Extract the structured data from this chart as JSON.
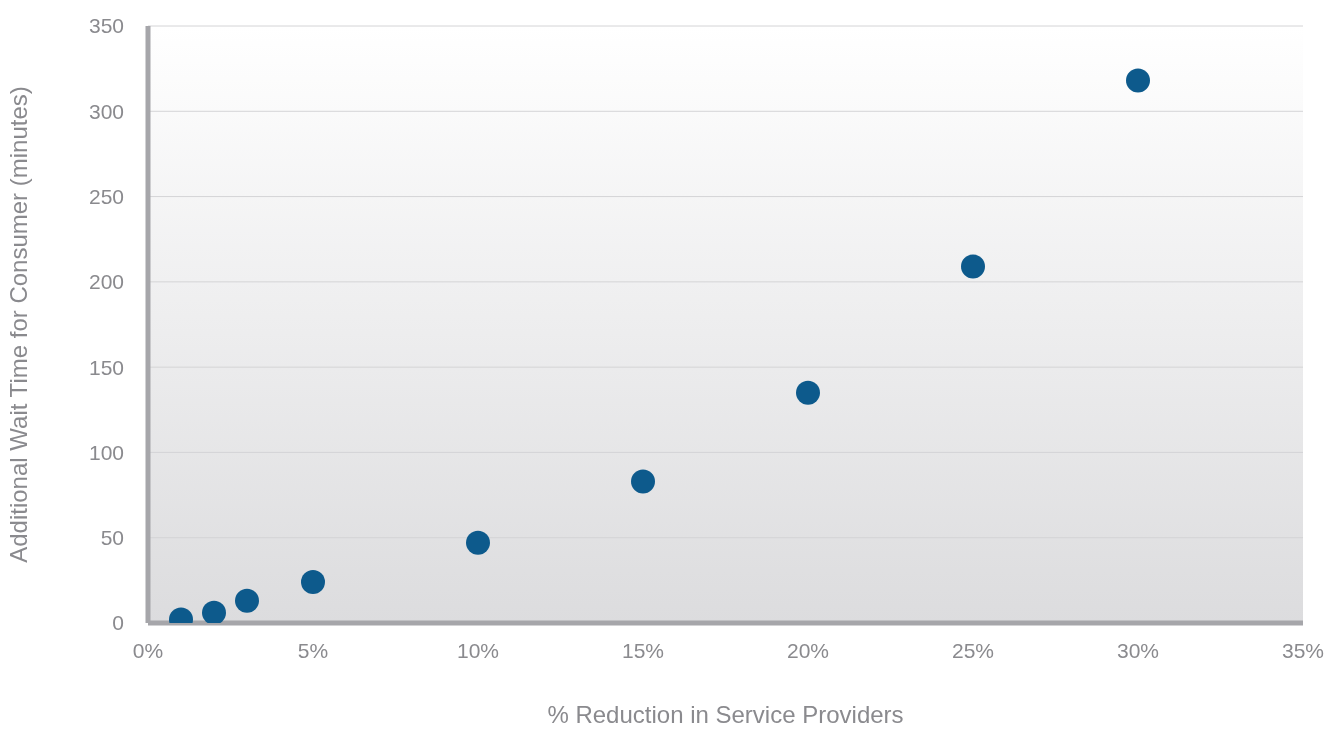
{
  "chart_data": {
    "type": "scatter",
    "xlabel": "% Reduction in Service Providers",
    "ylabel": "Additional Wait Time for Consumer (minutes)",
    "x": [
      1,
      2,
      3,
      5,
      10,
      15,
      20,
      25,
      30
    ],
    "values": [
      2,
      6,
      13,
      24,
      47,
      83,
      135,
      209,
      318
    ],
    "color": "#0d5a8c",
    "marker": "circle",
    "grid": "y",
    "xlim": [
      0,
      35
    ],
    "xticks": [
      {
        "value": 0,
        "label": "0%"
      },
      {
        "value": 5,
        "label": "5%"
      },
      {
        "value": 10,
        "label": "10%"
      },
      {
        "value": 15,
        "label": "15%"
      },
      {
        "value": 20,
        "label": "20%"
      },
      {
        "value": 25,
        "label": "25%"
      },
      {
        "value": 30,
        "label": "30%"
      },
      {
        "value": 35,
        "label": "35%"
      }
    ],
    "ylim": [
      0,
      350
    ],
    "yticks": [
      0,
      50,
      100,
      150,
      200,
      250,
      300,
      350
    ]
  }
}
